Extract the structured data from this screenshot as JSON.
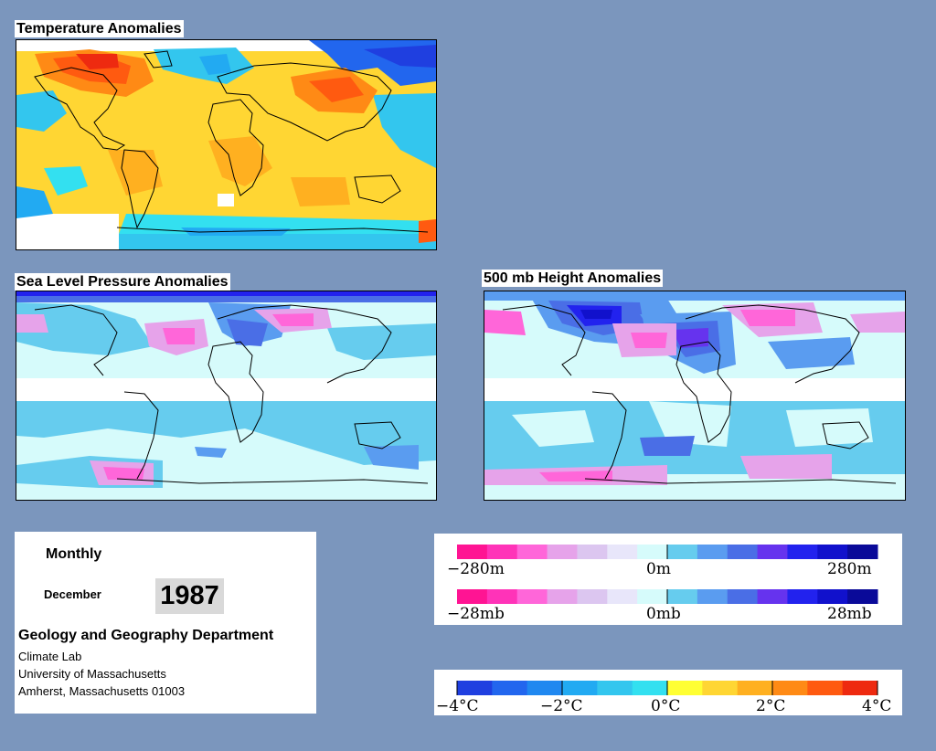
{
  "panels": {
    "temperature": {
      "title": "Temperature Anomalies"
    },
    "slp": {
      "title": "Sea Level Pressure Anomalies"
    },
    "height500": {
      "title": "500 mb Height Anomalies"
    }
  },
  "info": {
    "period": "Monthly",
    "month": "December",
    "year": "1987",
    "department": "Geology and Geography Department",
    "address_lines": [
      "Climate Lab",
      "University of Massachusetts",
      "Amherst, Massachusetts 01003"
    ]
  },
  "legends": {
    "height": {
      "min_label": "−280m",
      "mid_label": "0m",
      "max_label": "280m"
    },
    "pressure": {
      "min_label": "−28mb",
      "mid_label": "0mb",
      "max_label": "28mb"
    },
    "temperature": {
      "labels": [
        "−4°C",
        "−2°C",
        "0°C",
        "2°C",
        "4°C"
      ]
    }
  },
  "colors": {
    "background": "#7b96bd",
    "anomaly_scale": [
      "#ff1493",
      "#ff33b8",
      "#ff66d9",
      "#e6a3ea",
      "#dcc6f0",
      "#e8e6fa",
      "#d6fbfb",
      "#66ccee",
      "#5a9cf0",
      "#4a6ee6",
      "#6633ee",
      "#2222ee",
      "#1111cc",
      "#0a0a99"
    ],
    "temperature_scale": [
      "#1f3fe0",
      "#2266ee",
      "#1f88f0",
      "#22aaf2",
      "#33c6ee",
      "#33e0f0",
      "#ffff33",
      "#ffd633",
      "#ffb020",
      "#ff8a15",
      "#ff5a10",
      "#ee2a10"
    ]
  }
}
